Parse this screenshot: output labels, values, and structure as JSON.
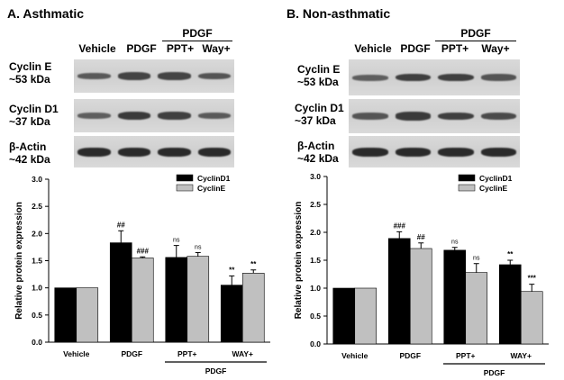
{
  "panels": [
    {
      "title": "A. Asthmatic",
      "lanes": [
        "Vehicle",
        "PDGF",
        "PPT+",
        "Way+"
      ],
      "lane_group_label": "PDGF",
      "blots": [
        {
          "label_line1": "Cyclin E",
          "label_line2": "~53 kDa",
          "band_intensity": [
            0.55,
            0.75,
            0.75,
            0.6
          ]
        },
        {
          "label_line1": "Cyclin D1",
          "label_line2": "~37 kDa",
          "band_intensity": [
            0.5,
            0.85,
            0.8,
            0.55
          ]
        },
        {
          "label_line1": "β-Actin",
          "label_line2": "~42 kDa",
          "band_intensity": [
            1,
            1,
            1,
            1
          ]
        }
      ]
    },
    {
      "title": "B. Non-asthmatic",
      "lanes": [
        "Vehicle",
        "PDGF",
        "PPT+",
        "Way+"
      ],
      "lane_group_label": "PDGF",
      "blots": [
        {
          "label_line1": "Cyclin E",
          "label_line2": "~53 kDa",
          "band_intensity": [
            0.5,
            0.8,
            0.8,
            0.6
          ]
        },
        {
          "label_line1": "Cyclin D1",
          "label_line2": "~37 kDa",
          "band_intensity": [
            0.6,
            0.85,
            0.8,
            0.7
          ]
        },
        {
          "label_line1": "β-Actin",
          "label_line2": "~42 kDa",
          "band_intensity": [
            1,
            1,
            1,
            1
          ]
        }
      ]
    }
  ],
  "chart_data": [
    {
      "type": "bar",
      "title": "",
      "xlabel": "",
      "ylabel": "Relative protein expression",
      "ylim": [
        0,
        3.0
      ],
      "yticks": [
        "0.0",
        "0.5",
        "1.0",
        "1.5",
        "2.0",
        "2.5",
        "3.0"
      ],
      "categories": [
        "Vehicle",
        "PDGF",
        "PPT+",
        "WAY+"
      ],
      "category_group_label": "PDGF",
      "legend_position": "top-right",
      "series": [
        {
          "name": "CyclinD1",
          "color": "#000000",
          "values": [
            1.0,
            1.83,
            1.56,
            1.05
          ],
          "errors": [
            0,
            0.22,
            0.22,
            0.17
          ],
          "annotations": [
            "",
            "##",
            "ns",
            "**"
          ]
        },
        {
          "name": "CyclinE",
          "color": "#c0c0c0",
          "values": [
            1.0,
            1.55,
            1.58,
            1.27
          ],
          "errors": [
            0,
            0.02,
            0.07,
            0.06
          ],
          "annotations": [
            "",
            "###",
            "ns",
            "**"
          ]
        }
      ]
    },
    {
      "type": "bar",
      "title": "",
      "xlabel": "",
      "ylabel": "Relative protein expression",
      "ylim": [
        0,
        3.0
      ],
      "yticks": [
        "0.0",
        "0.5",
        "1.0",
        "1.5",
        "2.0",
        "2.5",
        "3.0"
      ],
      "categories": [
        "Vehicle",
        "PDGF",
        "PPT+",
        "WAY+"
      ],
      "category_group_label": "PDGF",
      "legend_position": "top-right",
      "series": [
        {
          "name": "CyclinD1",
          "color": "#000000",
          "values": [
            1.0,
            1.89,
            1.68,
            1.42
          ],
          "errors": [
            0,
            0.12,
            0.05,
            0.08
          ],
          "annotations": [
            "",
            "###",
            "ns",
            "**"
          ]
        },
        {
          "name": "CyclinE",
          "color": "#c0c0c0",
          "values": [
            1.0,
            1.71,
            1.28,
            0.94
          ],
          "errors": [
            0,
            0.1,
            0.16,
            0.13
          ],
          "annotations": [
            "",
            "##",
            "ns",
            "***"
          ]
        }
      ]
    }
  ]
}
